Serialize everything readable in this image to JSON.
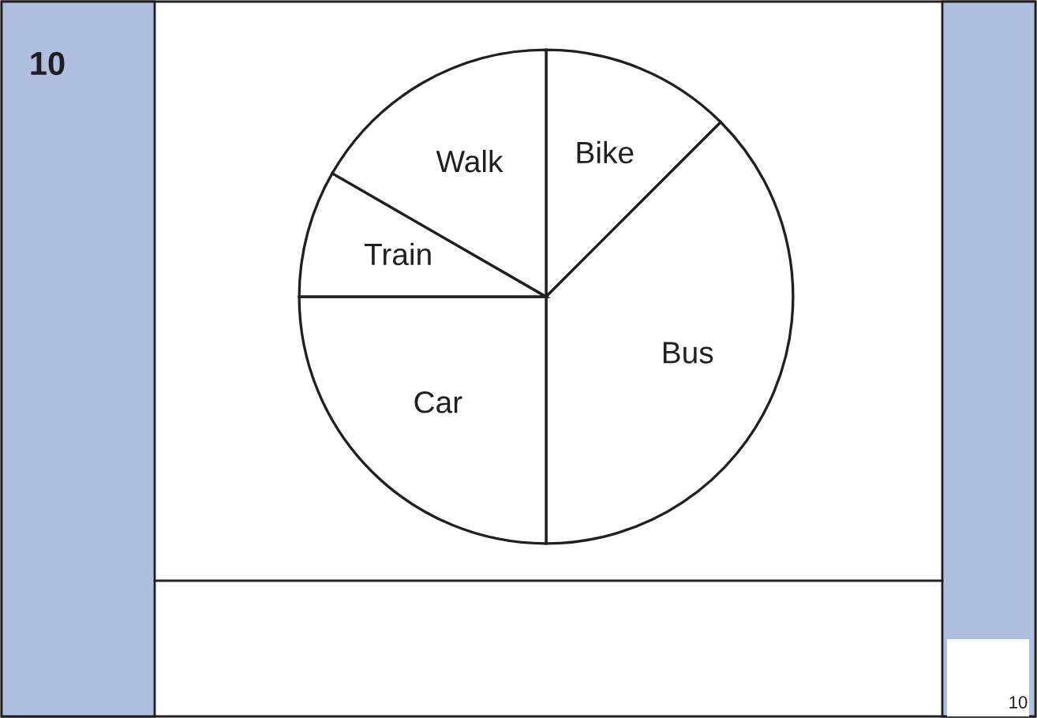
{
  "chart_data": {
    "type": "pie",
    "categories": [
      "Bike",
      "Bus",
      "Car",
      "Train",
      "Walk"
    ],
    "values": [
      12.5,
      37.5,
      25,
      8.33,
      16.67
    ],
    "colors": [
      "#ffffff",
      "#ffffff",
      "#ffffff",
      "#ffffff",
      "#ffffff"
    ],
    "annotations": [
      "10",
      "10"
    ]
  }
}
